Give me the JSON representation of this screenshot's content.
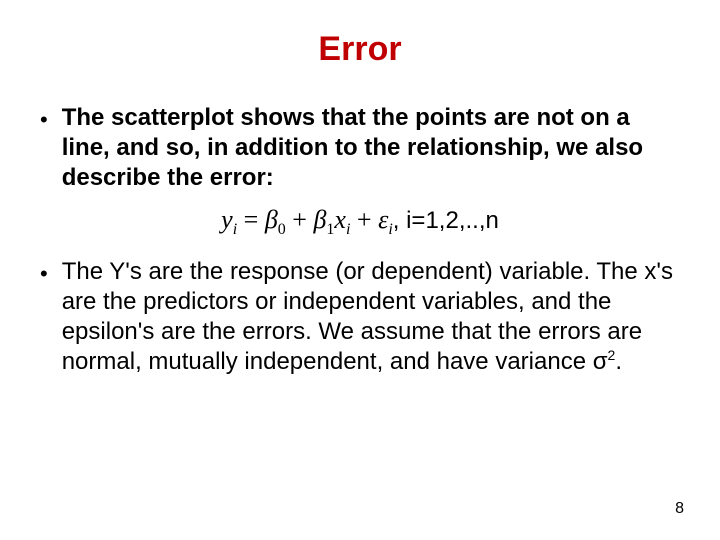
{
  "title": {
    "text": "Error",
    "color": "#c00000",
    "fontsize": 34,
    "weight": "bold"
  },
  "bullets": [
    {
      "text": "The scatterplot shows that the points are not on a line, and so, in addition to the relationship, we also describe the error:",
      "bold": true
    },
    {
      "text": "The Y's are the response (or dependent) variable. The x's are the predictors or independent variables, and the epsilon's are the errors.  We assume that the errors are normal, mutually independent, and have variance σ",
      "bold": false,
      "trailing_sup": "2",
      "trailing_after": "."
    }
  ],
  "equation": {
    "y": "y",
    "y_sub": "i",
    "eq": " = ",
    "b0": "β",
    "b0_sub": "0",
    "plus1": " + ",
    "b1": "β",
    "b1_sub": "1",
    "x": "x",
    "x_sub": "i",
    "plus2": " + ",
    "eps": "ε",
    "eps_sub": "i",
    "tail": ",  i=1,2,..,n"
  },
  "page_number": "8",
  "colors": {
    "background": "#ffffff",
    "body_text": "#000000"
  },
  "body_fontsize": 24
}
